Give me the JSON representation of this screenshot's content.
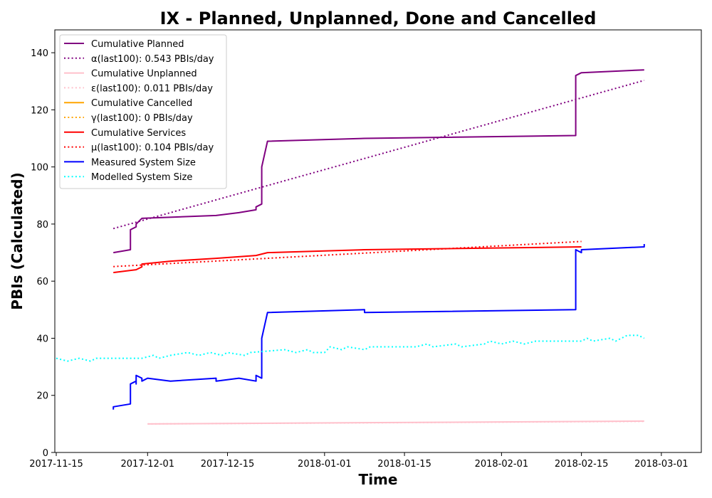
{
  "chart_data": {
    "type": "line",
    "title": "IX - Planned, Unplanned, Done  and Cancelled",
    "xlabel": "Time",
    "ylabel": "PBIs (Calculated)",
    "xlim": [
      "2017-11-15",
      "2018-03-08"
    ],
    "ylim": [
      0,
      148
    ],
    "x_ticks": [
      "2017-11-15",
      "2017-12-01",
      "2017-12-15",
      "2018-01-01",
      "2018-01-15",
      "2018-02-01",
      "2018-02-15",
      "2018-03-01"
    ],
    "y_ticks": [
      0,
      20,
      40,
      60,
      80,
      100,
      120,
      140
    ],
    "grid": false,
    "legend_position": "top-left",
    "series": [
      {
        "name": "Cumulative Planned",
        "color": "#800080",
        "style": "solid",
        "points": [
          [
            "2017-11-25",
            70
          ],
          [
            "2017-11-28",
            71
          ],
          [
            "2017-11-28",
            78
          ],
          [
            "2017-11-29",
            79
          ],
          [
            "2017-11-29",
            80
          ],
          [
            "2017-11-30",
            82
          ],
          [
            "2017-12-13",
            83
          ],
          [
            "2017-12-17",
            84
          ],
          [
            "2017-12-20",
            85
          ],
          [
            "2017-12-20",
            86
          ],
          [
            "2017-12-21",
            87
          ],
          [
            "2017-12-21",
            100
          ],
          [
            "2017-12-22",
            109
          ],
          [
            "2018-01-08",
            110
          ],
          [
            "2018-02-14",
            111
          ],
          [
            "2018-02-14",
            132
          ],
          [
            "2018-02-15",
            133
          ],
          [
            "2018-02-26",
            134
          ]
        ]
      },
      {
        "name": "α(last100): 0.543 PBIs/day",
        "color": "#800080",
        "style": "dotted",
        "points": [
          [
            "2017-11-25",
            78.4
          ],
          [
            "2018-02-26",
            130.3
          ]
        ]
      },
      {
        "name": "Cumulative Unplanned",
        "color": "#ffc0cb",
        "style": "solid",
        "points": [
          [
            "2017-12-01",
            10
          ],
          [
            "2018-02-26",
            11
          ]
        ]
      },
      {
        "name": "ε(last100): 0.011 PBIs/day",
        "color": "#ffc0cb",
        "style": "dotted",
        "points": [
          [
            "2017-12-01",
            10
          ],
          [
            "2018-02-26",
            10.9
          ]
        ]
      },
      {
        "name": "Cumulative Cancelled",
        "color": "#ffa500",
        "style": "solid",
        "points": []
      },
      {
        "name": "γ(last100): 0 PBIs/day",
        "color": "#ffa500",
        "style": "dotted",
        "points": []
      },
      {
        "name": "Cumulative Services",
        "color": "#ff0000",
        "style": "solid",
        "points": [
          [
            "2017-11-25",
            63
          ],
          [
            "2017-11-29",
            64
          ],
          [
            "2017-11-30",
            65
          ],
          [
            "2017-11-30",
            66
          ],
          [
            "2017-12-05",
            67
          ],
          [
            "2017-12-13",
            68
          ],
          [
            "2017-12-20",
            69
          ],
          [
            "2017-12-22",
            70
          ],
          [
            "2018-01-08",
            71
          ],
          [
            "2018-02-15",
            72
          ]
        ]
      },
      {
        "name": "μ(last100): 0.104 PBIs/day",
        "color": "#ff0000",
        "style": "dotted",
        "points": [
          [
            "2017-11-25",
            65.1
          ],
          [
            "2018-02-15",
            73.9
          ]
        ]
      },
      {
        "name": "Measured System Size",
        "color": "#0000ff",
        "style": "solid",
        "points": [
          [
            "2017-11-25",
            15
          ],
          [
            "2017-11-25",
            16
          ],
          [
            "2017-11-28",
            17
          ],
          [
            "2017-11-28",
            24
          ],
          [
            "2017-11-29",
            25
          ],
          [
            "2017-11-29",
            24
          ],
          [
            "2017-11-29",
            27
          ],
          [
            "2017-11-30",
            26
          ],
          [
            "2017-11-30",
            25
          ],
          [
            "2017-12-01",
            26
          ],
          [
            "2017-12-05",
            25
          ],
          [
            "2017-12-13",
            26
          ],
          [
            "2017-12-13",
            25
          ],
          [
            "2017-12-17",
            26
          ],
          [
            "2017-12-20",
            25
          ],
          [
            "2017-12-20",
            27
          ],
          [
            "2017-12-21",
            26
          ],
          [
            "2017-12-21",
            40
          ],
          [
            "2017-12-22",
            49
          ],
          [
            "2018-01-08",
            50
          ],
          [
            "2018-01-08",
            49
          ],
          [
            "2018-02-14",
            50
          ],
          [
            "2018-02-14",
            56
          ],
          [
            "2018-02-14",
            71
          ],
          [
            "2018-02-15",
            70
          ],
          [
            "2018-02-15",
            71
          ],
          [
            "2018-02-26",
            72
          ],
          [
            "2018-02-26",
            73
          ]
        ]
      },
      {
        "name": "Modelled System Size",
        "color": "#00ffff",
        "style": "dotted",
        "points": [
          [
            "2017-11-15",
            33
          ],
          [
            "2017-11-17",
            32
          ],
          [
            "2017-11-19",
            33
          ],
          [
            "2017-11-21",
            32
          ],
          [
            "2017-11-22",
            33
          ],
          [
            "2017-11-30",
            33
          ],
          [
            "2017-12-02",
            34
          ],
          [
            "2017-12-03",
            33
          ],
          [
            "2017-12-05",
            34
          ],
          [
            "2017-12-08",
            35
          ],
          [
            "2017-12-10",
            34
          ],
          [
            "2017-12-12",
            35
          ],
          [
            "2017-12-14",
            34
          ],
          [
            "2017-12-15",
            35
          ],
          [
            "2017-12-18",
            34
          ],
          [
            "2017-12-19",
            35
          ],
          [
            "2017-12-25",
            36
          ],
          [
            "2017-12-27",
            35
          ],
          [
            "2017-12-29",
            36
          ],
          [
            "2017-12-30",
            35
          ],
          [
            "2018-01-01",
            35
          ],
          [
            "2018-01-02",
            37
          ],
          [
            "2018-01-04",
            36
          ],
          [
            "2018-01-05",
            37
          ],
          [
            "2018-01-08",
            36
          ],
          [
            "2018-01-09",
            37
          ],
          [
            "2018-01-17",
            37
          ],
          [
            "2018-01-19",
            38
          ],
          [
            "2018-01-20",
            37
          ],
          [
            "2018-01-24",
            38
          ],
          [
            "2018-01-25",
            37
          ],
          [
            "2018-01-29",
            38
          ],
          [
            "2018-01-30",
            39
          ],
          [
            "2018-02-01",
            38
          ],
          [
            "2018-02-03",
            39
          ],
          [
            "2018-02-05",
            38
          ],
          [
            "2018-02-07",
            39
          ],
          [
            "2018-02-15",
            39
          ],
          [
            "2018-02-16",
            40
          ],
          [
            "2018-02-17",
            39
          ],
          [
            "2018-02-20",
            40
          ],
          [
            "2018-02-21",
            39
          ],
          [
            "2018-02-23",
            41
          ],
          [
            "2018-02-25",
            41
          ],
          [
            "2018-02-26",
            40
          ]
        ]
      }
    ]
  }
}
